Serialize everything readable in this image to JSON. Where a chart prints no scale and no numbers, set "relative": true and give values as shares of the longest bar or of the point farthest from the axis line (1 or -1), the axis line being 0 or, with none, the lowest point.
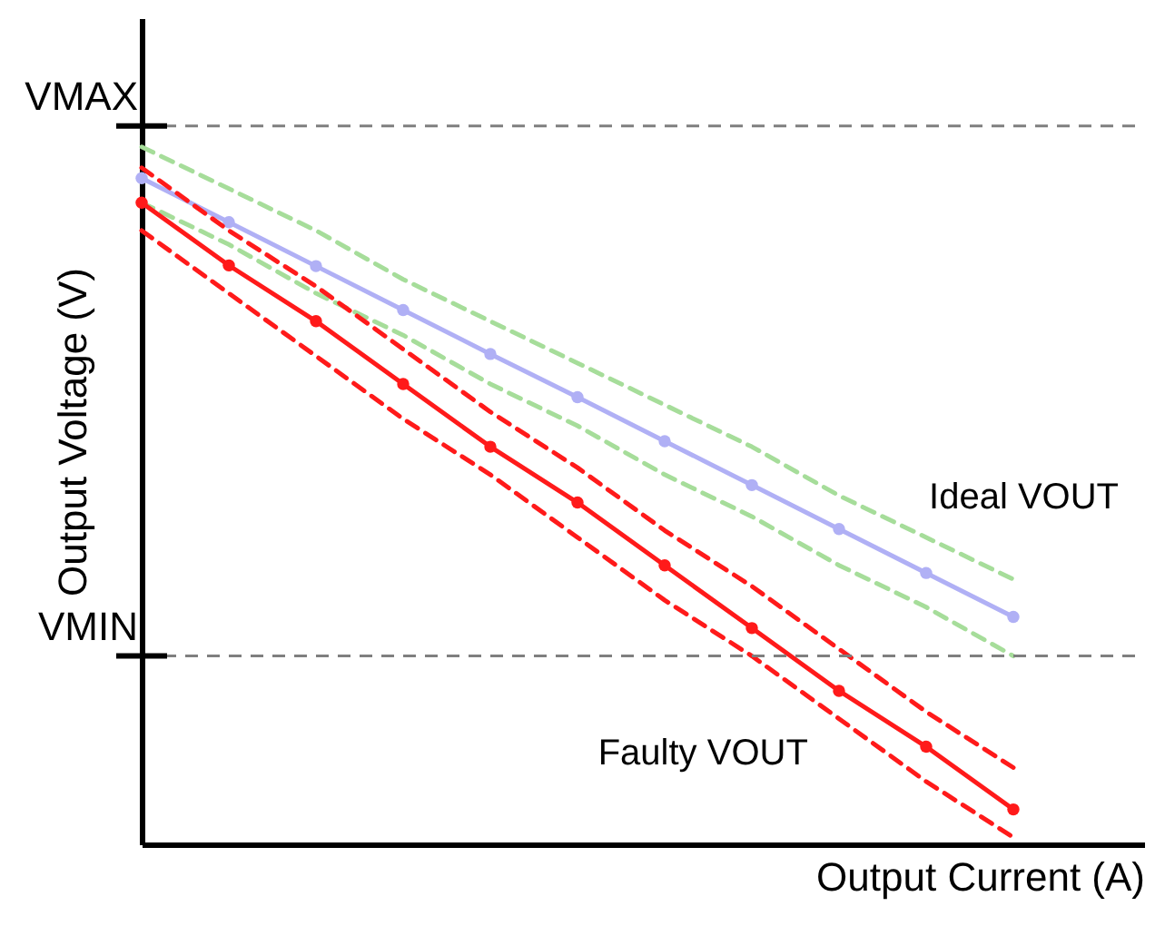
{
  "chart_data": {
    "type": "line",
    "relative": true,
    "xlabel": "Output Current (A)",
    "ylabel": "Output Voltage (V)",
    "categories": [
      null,
      null,
      null,
      null,
      null,
      null,
      null,
      null,
      null,
      null,
      null
    ],
    "series": [
      {
        "color": "#a6dd9a",
        "line_style": "dashed",
        "marker": "none",
        "values": [
          1.0,
          0.94,
          0.88,
          0.81,
          0.75,
          0.69,
          0.63,
          0.57,
          0.5,
          0.44,
          0.38
        ]
      },
      {
        "color": "#a6dd9a",
        "line_style": "dashed",
        "marker": "none",
        "values": [
          0.92,
          0.86,
          0.79,
          0.73,
          0.66,
          0.6,
          0.53,
          0.47,
          0.4,
          0.34,
          0.27
        ]
      },
      {
        "color": "#b0b0f5",
        "line_style": "solid",
        "marker": "circle",
        "values": [
          0.955,
          0.892,
          0.829,
          0.766,
          0.703,
          0.641,
          0.578,
          0.515,
          0.452,
          0.389,
          0.326
        ]
      },
      {
        "color": "#ff1a1a",
        "line_style": "dashed",
        "marker": "none",
        "values": [
          0.97,
          0.88,
          0.8,
          0.71,
          0.62,
          0.54,
          0.45,
          0.37,
          0.28,
          0.19,
          0.11
        ]
      },
      {
        "color": "#ff1a1a",
        "line_style": "dashed",
        "marker": "none",
        "values": [
          0.88,
          0.79,
          0.7,
          0.61,
          0.53,
          0.44,
          0.35,
          0.27,
          0.18,
          0.09,
          0.01
        ]
      },
      {
        "color": "#ff1a1a",
        "line_style": "solid",
        "marker": "circle",
        "values": [
          0.92,
          0.83,
          0.75,
          0.66,
          0.57,
          0.49,
          0.4,
          0.31,
          0.22,
          0.14,
          0.05
        ]
      }
    ],
    "ref_lines": [
      {
        "axis": "y",
        "value": 1.03,
        "label": "VMAX",
        "color": "#7f7f7f",
        "line_style": "dashed"
      },
      {
        "axis": "y",
        "value": 0.27,
        "label": "VMIN",
        "color": "#7f7f7f",
        "line_style": "dashed"
      }
    ],
    "annotations": [
      "Ideal VOUT",
      "Faulty VOUT"
    ]
  }
}
